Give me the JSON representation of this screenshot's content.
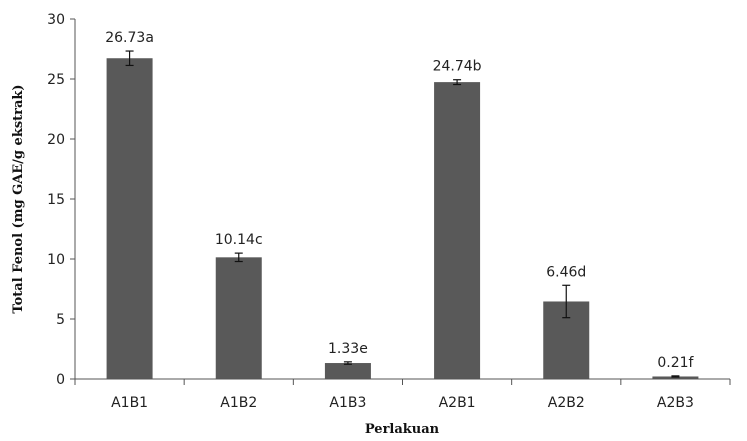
{
  "chart_data": {
    "type": "bar",
    "title": "",
    "xlabel": "Perlakuan",
    "ylabel": "Total Fenol (mg GAE/g ekstrak)",
    "ylim": [
      0,
      30
    ],
    "yticks": [
      0,
      5,
      10,
      15,
      20,
      25,
      30
    ],
    "grid": false,
    "categories": [
      "A1B1",
      "A1B2",
      "A1B3",
      "A2B1",
      "A2B2",
      "A2B3"
    ],
    "values": [
      26.73,
      10.14,
      1.33,
      24.74,
      6.46,
      0.21
    ],
    "errors": [
      0.6,
      0.35,
      0.1,
      0.2,
      1.35,
      0.05
    ],
    "data_labels": [
      "26.73a",
      "10.14c",
      "1.33e",
      "24.74b",
      "6.46d",
      "0.21f"
    ],
    "bar_color": "#595959"
  }
}
